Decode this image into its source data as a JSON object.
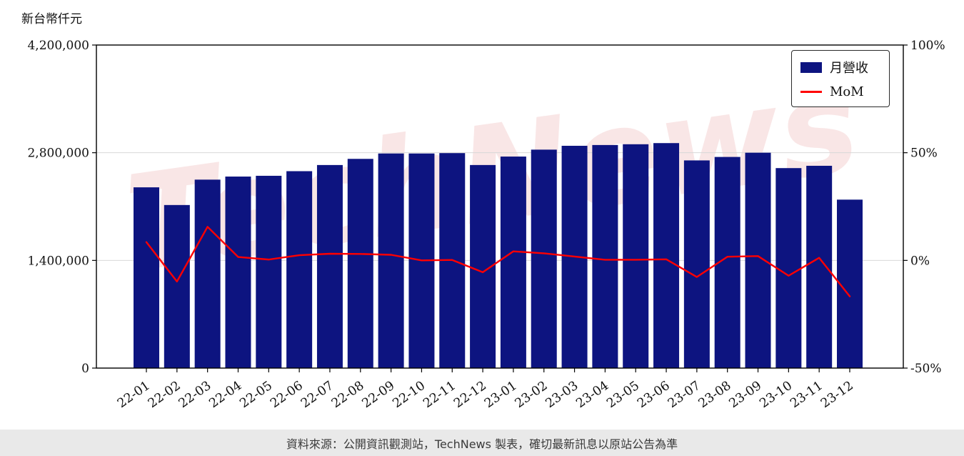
{
  "chart": {
    "unit_label": "新台幣仟元",
    "watermark": "TechNews",
    "legend": {
      "bar_label": "月營收",
      "line_label": "MoM"
    },
    "colors": {
      "bar": "#0d1480",
      "line": "#ff0000",
      "grid": "#d8d8d8",
      "spine": "#000000"
    }
  },
  "chart_data": {
    "type": "bar",
    "title": "",
    "xlabel": "",
    "ylabel_left": "新台幣仟元",
    "ylabel_right": "%",
    "grid": "horizontal",
    "legend_position": "upper right",
    "left_ylim": [
      0,
      4200000
    ],
    "right_ylim": [
      -50,
      100
    ],
    "grid_values": [
      1400000,
      2800000
    ],
    "left_ticks": [
      {
        "value": 4200000,
        "label": "4,200,000"
      },
      {
        "value": 2800000,
        "label": "2,800,000"
      },
      {
        "value": 1400000,
        "label": "1,400,000"
      },
      {
        "value": 0,
        "label": "0"
      }
    ],
    "right_ticks": [
      {
        "value": 100,
        "label": "100%"
      },
      {
        "value": 50,
        "label": "50%"
      },
      {
        "value": 0,
        "label": "0%"
      },
      {
        "value": -50,
        "label": "-50%"
      }
    ],
    "categories": [
      "22-01",
      "22-02",
      "22-03",
      "22-04",
      "22-05",
      "22-06",
      "22-07",
      "22-08",
      "22-09",
      "22-10",
      "22-11",
      "22-12",
      "23-01",
      "23-02",
      "23-03",
      "23-04",
      "23-05",
      "23-06",
      "23-07",
      "23-08",
      "23-09",
      "23-10",
      "23-11",
      "23-12"
    ],
    "series": [
      {
        "name": "月營收",
        "type": "bar",
        "axis": "left",
        "values": [
          2350000,
          2120000,
          2450000,
          2490000,
          2500000,
          2560000,
          2640000,
          2720000,
          2790000,
          2790000,
          2795000,
          2640000,
          2750000,
          2840000,
          2890000,
          2900000,
          2910000,
          2925000,
          2700000,
          2745000,
          2800000,
          2600000,
          2630000,
          2190000
        ]
      },
      {
        "name": "MoM",
        "type": "line",
        "axis": "right",
        "values": [
          8.5,
          -9.8,
          15.6,
          1.6,
          0.4,
          2.4,
          3.1,
          3.0,
          2.6,
          0.0,
          0.2,
          -5.5,
          4.2,
          3.3,
          1.8,
          0.3,
          0.3,
          0.5,
          -7.7,
          1.7,
          2.0,
          -7.1,
          1.2,
          -16.7
        ]
      }
    ]
  },
  "footer": {
    "text": "資料來源：公開資訊觀測站，TechNews 製表，確切最新訊息以原站公告為準"
  }
}
